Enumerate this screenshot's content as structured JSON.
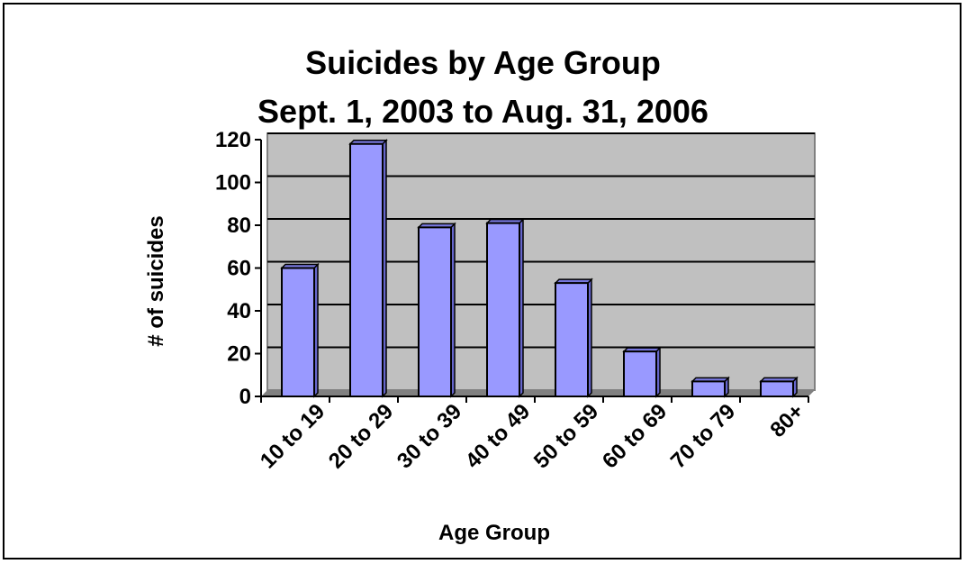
{
  "chart_data": {
    "type": "bar",
    "title": "Suicides by Age Group",
    "subtitle": "Sept. 1, 2003 to Aug. 31, 2006",
    "xlabel": "Age Group",
    "ylabel": "# of suicides",
    "categories": [
      "10 to 19",
      "20 to 29",
      "30 to 39",
      "40 to 49",
      "50 to 59",
      "60 to 69",
      "70 to 79",
      "80+"
    ],
    "values": [
      60,
      118,
      79,
      81,
      53,
      21,
      7,
      7
    ],
    "ylim": [
      0,
      120
    ],
    "yticks": [
      0,
      20,
      40,
      60,
      80,
      100,
      120
    ],
    "grid": true,
    "legend": "none",
    "colors": {
      "bar": "#9999ff",
      "bar_side": "#6666cc",
      "plot_background": "#c0c0c0",
      "gridline": "#000000",
      "border": "#808080"
    }
  }
}
